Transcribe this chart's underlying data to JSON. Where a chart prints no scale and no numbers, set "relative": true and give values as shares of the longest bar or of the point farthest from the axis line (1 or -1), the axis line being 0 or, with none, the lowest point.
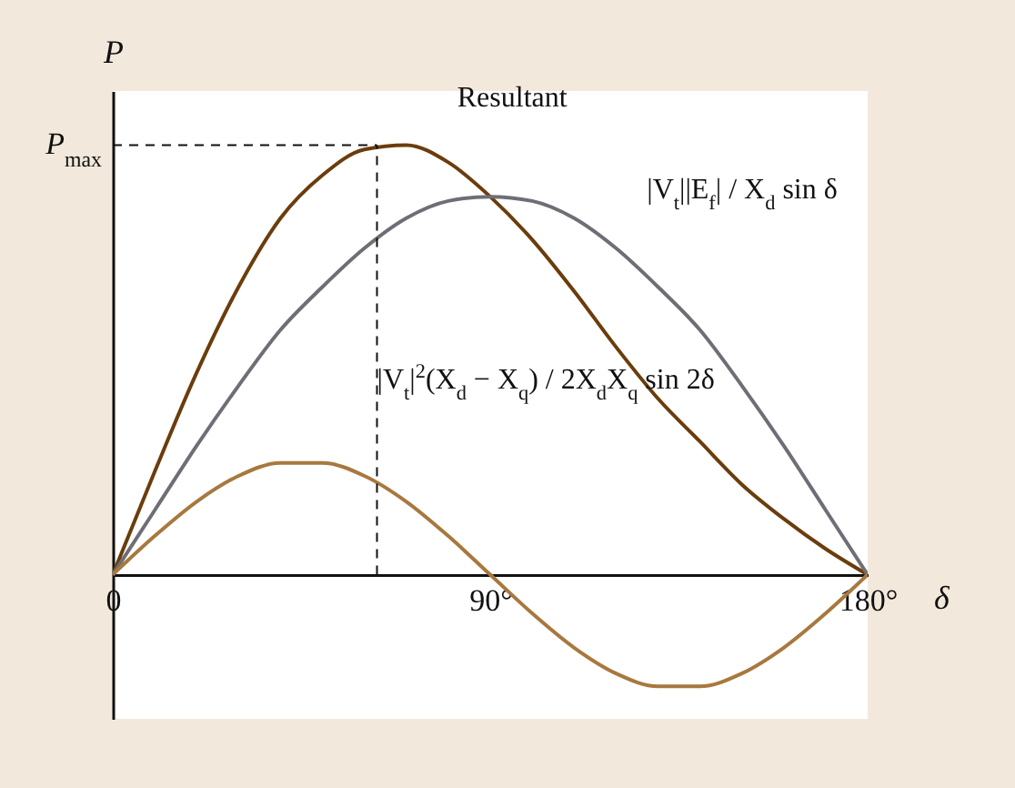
{
  "chart_data": {
    "type": "line",
    "relative": true,
    "ylabel": "P",
    "xlabel": "δ",
    "x": [
      0,
      10,
      20,
      30,
      40,
      50,
      60,
      70,
      80,
      90,
      100,
      110,
      120,
      130,
      140,
      150,
      160,
      170,
      180
    ],
    "xlim": [
      0,
      180
    ],
    "xticks": [
      {
        "value": 0,
        "label": "0"
      },
      {
        "value": 90,
        "label": "90°"
      },
      {
        "value": 180,
        "label": "180°"
      }
    ],
    "series": [
      {
        "name": "Resultant",
        "color": "#6b3d0c",
        "values": [
          0,
          0.24,
          0.47,
          0.67,
          0.83,
          0.93,
          0.99,
          1.0,
          0.96,
          0.88,
          0.78,
          0.66,
          0.53,
          0.41,
          0.31,
          0.21,
          0.13,
          0.06,
          0
        ]
      },
      {
        "name": "|V$_{t}$||E$_{f}$| / X$_{d}$  sin δ",
        "color": "#6e6e76",
        "values": [
          0,
          0.15,
          0.3,
          0.44,
          0.57,
          0.67,
          0.76,
          0.83,
          0.87,
          0.88,
          0.87,
          0.83,
          0.76,
          0.67,
          0.57,
          0.44,
          0.3,
          0.15,
          0
        ]
      },
      {
        "name": "|V$_{t}$|$^{2}$(X$_{d}$ − X$_{q}$) / 2X$_{d}$X$_{q}$  sin 2δ",
        "color": "#a8783e",
        "values": [
          0,
          0.09,
          0.17,
          0.23,
          0.26,
          0.26,
          0.23,
          0.17,
          0.09,
          0,
          -0.09,
          -0.17,
          -0.23,
          -0.26,
          -0.26,
          -0.23,
          -0.17,
          -0.09,
          0
        ]
      }
    ],
    "ref_lines": [
      {
        "axis": "y",
        "value": 1,
        "label": "P$_{max}$",
        "line_style": "dashed"
      },
      {
        "axis": "x",
        "value": 63,
        "line_style": "dashed"
      }
    ],
    "grid": false,
    "legend": false,
    "marker": "none",
    "line_style": "solid"
  }
}
